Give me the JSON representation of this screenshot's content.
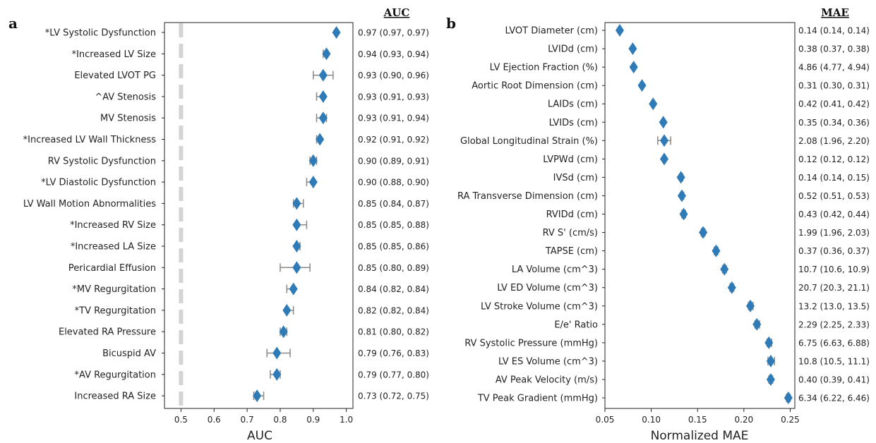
{
  "chart_data": [
    {
      "type": "scatter",
      "panel_label": "a",
      "xlabel": "AUC",
      "header": "AUC",
      "xlim": [
        0.45,
        1.02
      ],
      "xticks": [
        "0.5",
        "0.6",
        "0.7",
        "0.8",
        "0.9",
        "1.0"
      ],
      "reference_line": 0.5,
      "color": "#2e7bb7",
      "items": [
        {
          "label": "*LV Systolic Dysfunction",
          "value": 0.97,
          "lo": 0.97,
          "hi": 0.97,
          "text": "0.97 (0.97, 0.97)"
        },
        {
          "label": "*Increased LV Size",
          "value": 0.94,
          "lo": 0.93,
          "hi": 0.94,
          "text": "0.94 (0.93, 0.94)"
        },
        {
          "label": "Elevated LVOT PG",
          "value": 0.93,
          "lo": 0.9,
          "hi": 0.96,
          "text": "0.93 (0.90, 0.96)"
        },
        {
          "label": "^AV Stenosis",
          "value": 0.93,
          "lo": 0.91,
          "hi": 0.93,
          "text": "0.93 (0.91, 0.93)"
        },
        {
          "label": "MV Stenosis",
          "value": 0.93,
          "lo": 0.91,
          "hi": 0.94,
          "text": "0.93 (0.91, 0.94)"
        },
        {
          "label": "*Increased LV Wall Thickness",
          "value": 0.92,
          "lo": 0.91,
          "hi": 0.92,
          "text": "0.92 (0.91, 0.92)"
        },
        {
          "label": "RV Systolic Dysfunction",
          "value": 0.9,
          "lo": 0.89,
          "hi": 0.91,
          "text": "0.90 (0.89, 0.91)"
        },
        {
          "label": "*LV Diastolic Dysfunction",
          "value": 0.9,
          "lo": 0.88,
          "hi": 0.9,
          "text": "0.90 (0.88, 0.90)"
        },
        {
          "label": "LV Wall Motion Abnormalities",
          "value": 0.85,
          "lo": 0.84,
          "hi": 0.87,
          "text": "0.85 (0.84, 0.87)"
        },
        {
          "label": "*Increased RV Size",
          "value": 0.85,
          "lo": 0.85,
          "hi": 0.88,
          "text": "0.85 (0.85, 0.88)"
        },
        {
          "label": "*Increased LA Size",
          "value": 0.85,
          "lo": 0.85,
          "hi": 0.86,
          "text": "0.85 (0.85, 0.86)"
        },
        {
          "label": "Pericardial Effusion",
          "value": 0.85,
          "lo": 0.8,
          "hi": 0.89,
          "text": "0.85 (0.80, 0.89)"
        },
        {
          "label": "*MV Regurgitation",
          "value": 0.84,
          "lo": 0.82,
          "hi": 0.84,
          "text": "0.84 (0.82, 0.84)"
        },
        {
          "label": "*TV Regurgitation",
          "value": 0.82,
          "lo": 0.82,
          "hi": 0.84,
          "text": "0.82 (0.82, 0.84)"
        },
        {
          "label": "Elevated RA Pressure",
          "value": 0.81,
          "lo": 0.8,
          "hi": 0.82,
          "text": "0.81 (0.80, 0.82)"
        },
        {
          "label": "Bicuspid AV",
          "value": 0.79,
          "lo": 0.76,
          "hi": 0.83,
          "text": "0.79 (0.76, 0.83)"
        },
        {
          "label": "*AV Regurgitation",
          "value": 0.79,
          "lo": 0.77,
          "hi": 0.8,
          "text": "0.79 (0.77, 0.80)"
        },
        {
          "label": "Increased RA Size",
          "value": 0.73,
          "lo": 0.72,
          "hi": 0.75,
          "text": "0.73 (0.72, 0.75)"
        }
      ]
    },
    {
      "type": "scatter",
      "panel_label": "b",
      "xlabel": "Normalized MAE",
      "header": "MAE",
      "xlim": [
        0.05,
        0.255
      ],
      "xticks": [
        "0.05",
        "0.10",
        "0.15",
        "0.20",
        "0.25"
      ],
      "color": "#2e7bb7",
      "items": [
        {
          "label": "LVOT Diameter (cm)",
          "value": 0.066,
          "lo": 0.066,
          "hi": 0.066,
          "text": "0.14 (0.14, 0.14)"
        },
        {
          "label": "LVIDd (cm)",
          "value": 0.08,
          "lo": 0.079,
          "hi": 0.081,
          "text": "0.38 (0.37, 0.38)"
        },
        {
          "label": "LV Ejection Fraction (%)",
          "value": 0.081,
          "lo": 0.08,
          "hi": 0.082,
          "text": "4.86 (4.77, 4.94)"
        },
        {
          "label": "Aortic Root Dimension (cm)",
          "value": 0.09,
          "lo": 0.089,
          "hi": 0.091,
          "text": "0.31 (0.30, 0.31)"
        },
        {
          "label": "LAIDs (cm)",
          "value": 0.102,
          "lo": 0.101,
          "hi": 0.103,
          "text": "0.42 (0.41, 0.42)"
        },
        {
          "label": "LVIDs (cm)",
          "value": 0.113,
          "lo": 0.112,
          "hi": 0.114,
          "text": "0.35 (0.34, 0.36)"
        },
        {
          "label": "Global Longitudinal Strain (%)",
          "value": 0.114,
          "lo": 0.107,
          "hi": 0.121,
          "text": "2.08 (1.96, 2.20)"
        },
        {
          "label": "LVPWd (cm)",
          "value": 0.114,
          "lo": 0.113,
          "hi": 0.115,
          "text": "0.12 (0.12, 0.12)"
        },
        {
          "label": "IVSd (cm)",
          "value": 0.132,
          "lo": 0.131,
          "hi": 0.134,
          "text": "0.14 (0.14, 0.15)"
        },
        {
          "label": "RA Transverse Dimension (cm)",
          "value": 0.133,
          "lo": 0.132,
          "hi": 0.135,
          "text": "0.52 (0.51, 0.53)"
        },
        {
          "label": "RVIDd (cm)",
          "value": 0.135,
          "lo": 0.133,
          "hi": 0.137,
          "text": "0.43 (0.42, 0.44)"
        },
        {
          "label": "RV S' (cm/s)",
          "value": 0.156,
          "lo": 0.154,
          "hi": 0.158,
          "text": "1.99 (1.96, 2.03)"
        },
        {
          "label": "TAPSE (cm)",
          "value": 0.17,
          "lo": 0.168,
          "hi": 0.172,
          "text": "0.37 (0.36, 0.37)"
        },
        {
          "label": "LA Volume (cm^3)",
          "value": 0.179,
          "lo": 0.177,
          "hi": 0.181,
          "text": "10.7 (10.6, 10.9)"
        },
        {
          "label": "LV ED Volume (cm^3)",
          "value": 0.187,
          "lo": 0.185,
          "hi": 0.189,
          "text": "20.7 (20.3, 21.1)"
        },
        {
          "label": "LV Stroke Volume (cm^3)",
          "value": 0.207,
          "lo": 0.205,
          "hi": 0.21,
          "text": "13.2 (13.0, 13.5)"
        },
        {
          "label": "E/e' Ratio",
          "value": 0.214,
          "lo": 0.212,
          "hi": 0.217,
          "text": "2.29 (2.25, 2.33)"
        },
        {
          "label": "RV Systolic Pressure (mmHg)",
          "value": 0.227,
          "lo": 0.225,
          "hi": 0.23,
          "text": "6.75 (6.63, 6.88)"
        },
        {
          "label": "LV ES Volume (cm^3)",
          "value": 0.229,
          "lo": 0.226,
          "hi": 0.233,
          "text": "10.8 (10.5, 11.1)"
        },
        {
          "label": "AV Peak Velocity (m/s)",
          "value": 0.229,
          "lo": 0.227,
          "hi": 0.231,
          "text": "0.40 (0.39, 0.41)"
        },
        {
          "label": "TV Peak Gradient (mmHg)",
          "value": 0.248,
          "lo": 0.246,
          "hi": 0.25,
          "text": "6.34 (6.22, 6.46)"
        }
      ]
    }
  ]
}
